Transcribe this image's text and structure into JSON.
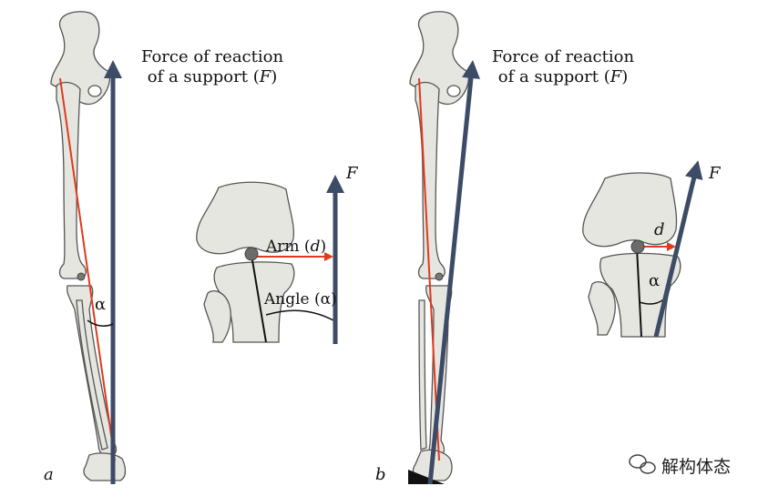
{
  "panel_a": {
    "letter": "a",
    "force_title_line1": "Force of reaction",
    "force_title_line2_prefix": "of a support (",
    "force_symbol": "F",
    "force_title_line2_suffix": ")",
    "alpha": "α",
    "knee": {
      "force_label": "F",
      "arm_label_prefix": "Arm (",
      "arm_symbol": "d",
      "arm_label_suffix": ")",
      "angle_label": "Angle (α)"
    }
  },
  "panel_b": {
    "letter": "b",
    "force_title_line1": "Force of reaction",
    "force_title_line2_prefix": "of a support (",
    "force_symbol": "F",
    "force_title_line2_suffix": ")",
    "knee": {
      "force_label": "F",
      "arm_symbol": "d",
      "alpha": "α"
    }
  },
  "watermark": {
    "icon": "wechat-icon",
    "text": "解构体态"
  },
  "colors": {
    "force_arrow": "#3d4c66",
    "mechanical_axis": "#e03a1e",
    "bone_fill": "#e6e6e1",
    "bone_stroke": "#555555"
  }
}
